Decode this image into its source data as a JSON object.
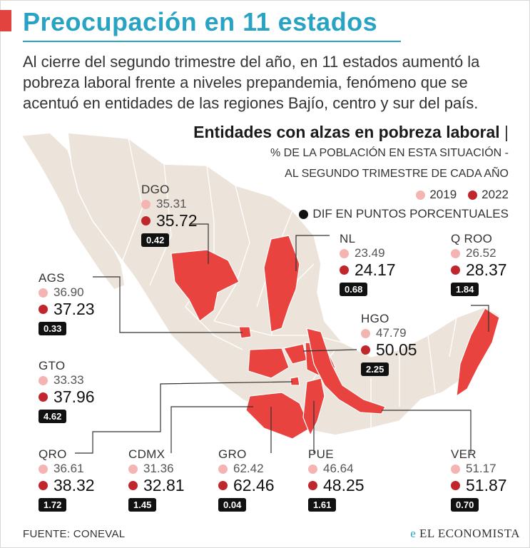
{
  "title": "Preocupación en 11 estados",
  "intro": "Al cierre del segundo trimestre del año, en 11 estados aumentó la pobreza laboral frente a niveles prepandemia, fenómeno que se acentuó  en entidades de las regiones Bajío, centro y sur del país.",
  "chart_title": "Entidades con alzas en pobreza laboral",
  "chart_title_bar": "|",
  "subtitle_line1": "% DE LA POBLACIÓN EN ESTA SITUACIÓN -",
  "subtitle_line2": "AL SEGUNDO TRIMESTRE DE CADA AÑO",
  "legend": {
    "y2019": "2019",
    "y2022": "2022",
    "dif": "DIF EN PUNTOS PORCENTUALES"
  },
  "colors": {
    "accent": "#29a3c4",
    "highlight": "#e8433f",
    "land": "#ece4da",
    "dot2019": "#f4b5b2",
    "dot2022": "#c0272d"
  },
  "states": {
    "dgo": {
      "name": "DGO",
      "v2019": "35.31",
      "v2022": "35.72",
      "dif": "0.42"
    },
    "nl": {
      "name": "NL",
      "v2019": "23.49",
      "v2022": "24.17",
      "dif": "0.68"
    },
    "qroo": {
      "name": "Q ROO",
      "v2019": "26.52",
      "v2022": "28.37",
      "dif": "1.84"
    },
    "ags": {
      "name": "AGS",
      "v2019": "36.90",
      "v2022": "37.23",
      "dif": "0.33"
    },
    "hgo": {
      "name": "HGO",
      "v2019": "47.79",
      "v2022": "50.05",
      "dif": "2.25"
    },
    "gto": {
      "name": "GTO",
      "v2019": "33.33",
      "v2022": "37.96",
      "dif": "4.62"
    },
    "qro": {
      "name": "QRO",
      "v2019": "36.61",
      "v2022": "38.32",
      "dif": "1.72"
    },
    "cdmx": {
      "name": "CDMX",
      "v2019": "31.36",
      "v2022": "32.81",
      "dif": "1.45"
    },
    "gro": {
      "name": "GRO",
      "v2019": "62.42",
      "v2022": "62.46",
      "dif": "0.04"
    },
    "pue": {
      "name": "PUE",
      "v2019": "46.64",
      "v2022": "48.25",
      "dif": "1.61"
    },
    "ver": {
      "name": "VER",
      "v2019": "51.17",
      "v2022": "51.87",
      "dif": "0.70"
    }
  },
  "source": "FUENTE: CONEVAL",
  "brand": "EL ECONOMISTA",
  "brand_mark": "e"
}
